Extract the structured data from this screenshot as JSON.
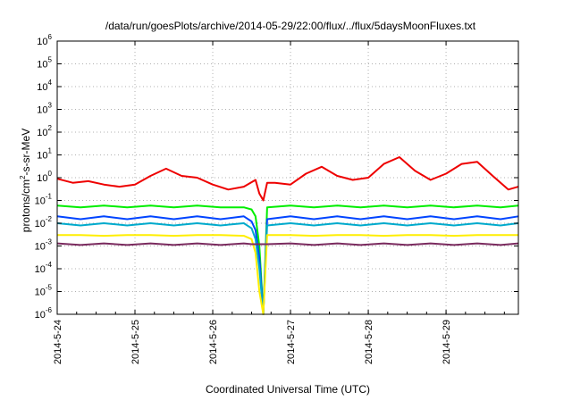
{
  "chart_data": {
    "type": "line",
    "title": "/data/run/goesPlots/archive/2014-05-29/22:00/flux/../flux/5daysMoonFluxes.txt",
    "xlabel": "Coordinated Universal Time (UTC)",
    "ylabel": "protons/cm2-s-sr-MeV",
    "ylabel_parts": {
      "pre": "protons/cm",
      "sup": "2",
      "post": "-s-sr-MeV"
    },
    "yscale": "log",
    "ylim": [
      1e-06,
      1000000.0
    ],
    "y_tick_exponents": [
      -6,
      -5,
      -4,
      -3,
      -2,
      -1,
      0,
      1,
      2,
      3,
      4,
      5,
      6
    ],
    "x_ticks": [
      "2014-5-24",
      "2014-5-25",
      "2014-5-26",
      "2014-5-27",
      "2014-5-28",
      "2014-5-29"
    ],
    "x_range_days": [
      0,
      5.93
    ],
    "grid": true,
    "legend": "none",
    "series": [
      {
        "color": "#ee0000",
        "x": [
          0.0,
          0.2,
          0.4,
          0.6,
          0.8,
          1.0,
          1.2,
          1.4,
          1.6,
          1.8,
          2.0,
          2.2,
          2.4,
          2.55,
          2.6,
          2.65,
          2.7,
          2.8,
          3.0,
          3.2,
          3.4,
          3.6,
          3.8,
          4.0,
          4.2,
          4.4,
          4.6,
          4.8,
          5.0,
          5.2,
          5.4,
          5.6,
          5.8,
          5.93
        ],
        "y": [
          0.9,
          0.6,
          0.7,
          0.5,
          0.4,
          0.5,
          1.2,
          2.5,
          1.2,
          1.0,
          0.5,
          0.3,
          0.4,
          0.8,
          0.2,
          0.1,
          0.6,
          0.6,
          0.5,
          1.5,
          3.0,
          1.2,
          0.8,
          1.0,
          4.0,
          8.0,
          2.0,
          0.8,
          1.5,
          4.0,
          5.0,
          1.2,
          0.3,
          0.4
        ]
      },
      {
        "color": "#00ee00",
        "x": [
          0.0,
          0.3,
          0.6,
          0.9,
          1.2,
          1.5,
          1.8,
          2.1,
          2.4,
          2.5,
          2.55,
          2.6,
          2.65,
          2.7,
          3.0,
          3.3,
          3.6,
          3.9,
          4.2,
          4.5,
          4.8,
          5.1,
          5.4,
          5.7,
          5.93
        ],
        "y": [
          0.06,
          0.05,
          0.06,
          0.05,
          0.06,
          0.05,
          0.06,
          0.05,
          0.05,
          0.04,
          0.02,
          0.001,
          1e-06,
          0.05,
          0.06,
          0.05,
          0.06,
          0.05,
          0.06,
          0.05,
          0.06,
          0.05,
          0.06,
          0.05,
          0.06
        ]
      },
      {
        "color": "#0044ff",
        "x": [
          0.0,
          0.3,
          0.6,
          0.9,
          1.2,
          1.5,
          1.8,
          2.1,
          2.4,
          2.5,
          2.55,
          2.6,
          2.65,
          2.7,
          3.0,
          3.3,
          3.6,
          3.9,
          4.2,
          4.5,
          4.8,
          5.1,
          5.4,
          5.7,
          5.93
        ],
        "y": [
          0.02,
          0.015,
          0.02,
          0.015,
          0.02,
          0.015,
          0.02,
          0.015,
          0.02,
          0.012,
          0.005,
          0.0003,
          1e-06,
          0.015,
          0.02,
          0.015,
          0.02,
          0.015,
          0.02,
          0.015,
          0.02,
          0.015,
          0.02,
          0.015,
          0.02
        ]
      },
      {
        "color": "#00aacc",
        "x": [
          0.0,
          0.3,
          0.6,
          0.9,
          1.2,
          1.5,
          1.8,
          2.1,
          2.4,
          2.5,
          2.55,
          2.6,
          2.65,
          2.7,
          3.0,
          3.3,
          3.6,
          3.9,
          4.2,
          4.5,
          4.8,
          5.1,
          5.4,
          5.7,
          5.93
        ],
        "y": [
          0.01,
          0.008,
          0.01,
          0.008,
          0.01,
          0.008,
          0.01,
          0.008,
          0.01,
          0.006,
          0.002,
          0.0001,
          1e-06,
          0.008,
          0.01,
          0.008,
          0.01,
          0.008,
          0.01,
          0.008,
          0.01,
          0.008,
          0.01,
          0.008,
          0.01
        ]
      },
      {
        "color": "#ffee00",
        "x": [
          0.0,
          0.3,
          0.6,
          0.9,
          1.2,
          1.5,
          1.8,
          2.1,
          2.4,
          2.5,
          2.55,
          2.6,
          2.65,
          2.7,
          3.0,
          3.3,
          3.6,
          3.9,
          4.2,
          4.5,
          4.8,
          5.1,
          5.4,
          5.7,
          5.93
        ],
        "y": [
          0.003,
          0.003,
          0.0028,
          0.003,
          0.003,
          0.0028,
          0.003,
          0.003,
          0.0028,
          0.002,
          0.0005,
          1e-05,
          1e-06,
          0.003,
          0.003,
          0.0028,
          0.003,
          0.003,
          0.0028,
          0.003,
          0.003,
          0.0028,
          0.003,
          0.003,
          0.003
        ]
      },
      {
        "color": "#7a2a5e",
        "x": [
          0.0,
          0.3,
          0.6,
          0.9,
          1.2,
          1.5,
          1.8,
          2.1,
          2.4,
          2.5,
          2.55,
          2.6,
          2.65,
          2.7,
          3.0,
          3.3,
          3.6,
          3.9,
          4.2,
          4.5,
          4.8,
          5.1,
          5.4,
          5.7,
          5.93
        ],
        "y": [
          0.0013,
          0.0011,
          0.0013,
          0.0011,
          0.0013,
          0.0011,
          0.0013,
          0.0011,
          0.0013,
          0.0012,
          0.0012,
          0.0012,
          0.0012,
          0.0012,
          0.0013,
          0.0011,
          0.0013,
          0.0011,
          0.0013,
          0.0011,
          0.0013,
          0.0011,
          0.0013,
          0.0011,
          0.0013
        ]
      }
    ]
  }
}
